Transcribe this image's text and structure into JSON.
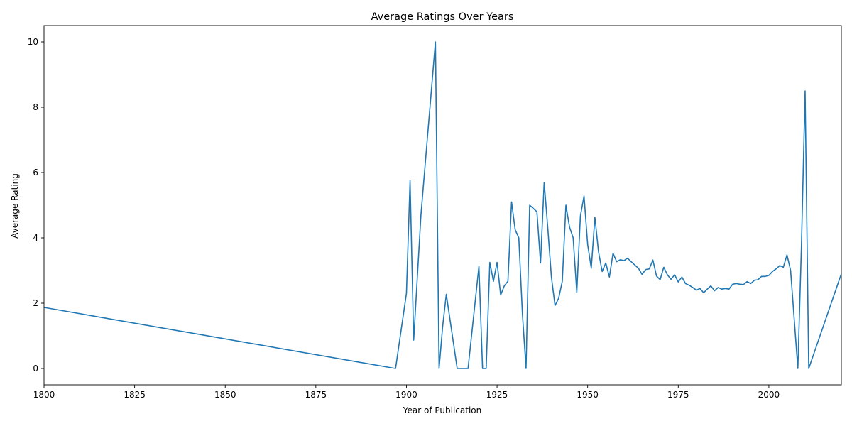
{
  "chart_data": {
    "type": "line",
    "title": "Average Ratings Over Years",
    "xlabel": "Year of Publication",
    "ylabel": "Average Rating",
    "xlim": [
      1800,
      2020
    ],
    "ylim": [
      -0.5,
      10.5
    ],
    "xticks": [
      1800,
      1825,
      1850,
      1875,
      1900,
      1925,
      1950,
      1975,
      2000
    ],
    "yticks": [
      0,
      2,
      4,
      6,
      8,
      10
    ],
    "grid": false,
    "legend": "none",
    "series": [
      {
        "color": "#1f77b4",
        "x": [
          1800,
          1897,
          1900,
          1901,
          1902,
          1904,
          1908,
          1909,
          1910,
          1911,
          1914,
          1917,
          1920,
          1921,
          1922,
          1923,
          1924,
          1925,
          1926,
          1927,
          1928,
          1929,
          1930,
          1931,
          1932,
          1933,
          1934,
          1936,
          1937,
          1938,
          1939,
          1940,
          1941,
          1942,
          1943,
          1944,
          1945,
          1946,
          1947,
          1948,
          1949,
          1950,
          1951,
          1952,
          1953,
          1954,
          1955,
          1956,
          1957,
          1958,
          1959,
          1960,
          1961,
          1962,
          1963,
          1964,
          1965,
          1966,
          1967,
          1968,
          1969,
          1970,
          1971,
          1972,
          1973,
          1974,
          1975,
          1976,
          1977,
          1978,
          1979,
          1980,
          1981,
          1982,
          1983,
          1984,
          1985,
          1986,
          1987,
          1988,
          1989,
          1990,
          1991,
          1992,
          1993,
          1994,
          1995,
          1996,
          1997,
          1998,
          1999,
          2000,
          2001,
          2002,
          2003,
          2004,
          2005,
          2006,
          2008,
          2009,
          2010,
          2011,
          2020
        ],
        "y": [
          1.87,
          0,
          2.3,
          5.75,
          0.87,
          4.7,
          10,
          0,
          1.3,
          2.27,
          0,
          0,
          3.13,
          0,
          0,
          3.25,
          2.67,
          3.25,
          2.25,
          2.53,
          2.67,
          5.1,
          4.25,
          4.0,
          1.67,
          0,
          5.0,
          4.8,
          3.23,
          5.7,
          4.3,
          2.8,
          1.93,
          2.15,
          2.67,
          5.0,
          4.33,
          4.0,
          2.33,
          4.67,
          5.28,
          3.8,
          3.07,
          4.63,
          3.57,
          2.97,
          3.23,
          2.8,
          3.53,
          3.27,
          3.33,
          3.3,
          3.38,
          3.27,
          3.17,
          3.07,
          2.88,
          3.03,
          3.05,
          3.32,
          2.83,
          2.72,
          3.1,
          2.87,
          2.73,
          2.87,
          2.65,
          2.8,
          2.6,
          2.55,
          2.48,
          2.4,
          2.45,
          2.32,
          2.43,
          2.53,
          2.38,
          2.48,
          2.43,
          2.45,
          2.43,
          2.58,
          2.6,
          2.58,
          2.57,
          2.66,
          2.6,
          2.7,
          2.72,
          2.82,
          2.82,
          2.85,
          2.97,
          3.05,
          3.15,
          3.1,
          3.48,
          3.0,
          0,
          3.8,
          8.5,
          0,
          2.9
        ]
      }
    ]
  }
}
